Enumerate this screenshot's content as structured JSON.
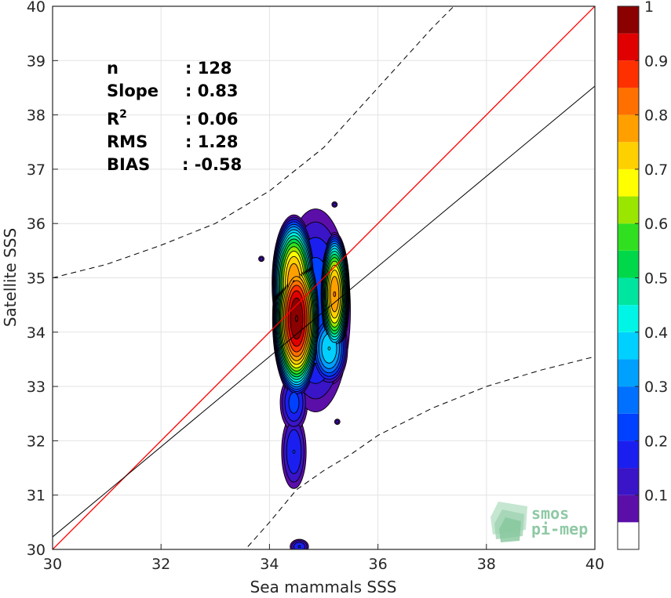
{
  "chart_data": {
    "type": "contour",
    "xlabel": "Sea mammals SSS",
    "ylabel": "Satellite SSS",
    "xlim": [
      30,
      40
    ],
    "ylim": [
      30,
      40
    ],
    "x_ticks": [
      "30",
      "32",
      "34",
      "36",
      "38",
      "40"
    ],
    "y_ticks": [
      "30",
      "31",
      "32",
      "33",
      "34",
      "35",
      "36",
      "37",
      "38",
      "39",
      "40"
    ],
    "grid": true,
    "stats": [
      {
        "label": "n",
        "value": ": 128"
      },
      {
        "label": "Slope",
        "value": ": 0.83"
      },
      {
        "label": "R",
        "label_sup": "2",
        "value": ": 0.06"
      },
      {
        "label": "RMS",
        "value": ": 1.28"
      },
      {
        "label": "BIAS",
        "value": ": -0.58"
      }
    ],
    "identity_line": {
      "x": [
        30,
        40
      ],
      "y": [
        30,
        40
      ],
      "color": "#ff0000"
    },
    "regression_line": {
      "x": [
        30,
        40
      ],
      "y": [
        30.23,
        38.53
      ],
      "color": "#000000"
    },
    "upper_confidence_curve": {
      "x": [
        30,
        31,
        32,
        33,
        34,
        35,
        36,
        37,
        37.4
      ],
      "y": [
        35.0,
        35.25,
        35.6,
        36.0,
        36.6,
        37.4,
        38.5,
        39.6,
        40.0
      ]
    },
    "lower_confidence_curve": {
      "x": [
        33.6,
        34,
        34.5,
        35,
        35.5,
        36,
        37,
        38,
        39,
        40
      ],
      "y": [
        30.05,
        30.5,
        31.1,
        31.45,
        31.75,
        32.1,
        32.6,
        33.0,
        33.3,
        33.55
      ]
    },
    "density_blobs": [
      {
        "cx": 34.5,
        "cy": 34.25,
        "rx": 0.35,
        "ry": 1.15,
        "peak": 1.0
      },
      {
        "cx": 35.2,
        "cy": 34.7,
        "rx": 0.22,
        "ry": 0.9,
        "peak": 0.8
      },
      {
        "cx": 34.45,
        "cy": 34.9,
        "rx": 0.32,
        "ry": 1.0,
        "peak": 0.8
      },
      {
        "cx": 34.85,
        "cy": 34.4,
        "rx": 0.55,
        "ry": 1.6,
        "peak": 0.25
      },
      {
        "cx": 35.1,
        "cy": 33.7,
        "rx": 0.28,
        "ry": 0.55,
        "peak": 0.4
      },
      {
        "cx": 34.8,
        "cy": 35.7,
        "rx": 0.45,
        "ry": 0.45,
        "peak": 0.12
      },
      {
        "cx": 34.45,
        "cy": 32.7,
        "rx": 0.22,
        "ry": 0.45,
        "peak": 0.22
      },
      {
        "cx": 34.45,
        "cy": 31.8,
        "rx": 0.2,
        "ry": 0.6,
        "peak": 0.2
      },
      {
        "cx": 34.55,
        "cy": 30.05,
        "rx": 0.15,
        "ry": 0.12,
        "peak": 0.2
      },
      {
        "cx": 35.2,
        "cy": 36.35,
        "rx": 0.05,
        "ry": 0.05,
        "peak": 0.12
      },
      {
        "cx": 33.85,
        "cy": 35.35,
        "rx": 0.05,
        "ry": 0.05,
        "peak": 0.12
      },
      {
        "cx": 35.25,
        "cy": 32.35,
        "rx": 0.05,
        "ry": 0.05,
        "peak": 0.12
      }
    ],
    "colorbar": {
      "ticks": [
        "0.1",
        "0.2",
        "0.3",
        "0.4",
        "0.5",
        "0.6",
        "0.7",
        "0.8",
        "0.9",
        "1"
      ],
      "range": [
        0,
        1
      ],
      "levels": [
        0.05,
        0.1,
        0.15,
        0.2,
        0.25,
        0.3,
        0.35,
        0.4,
        0.45,
        0.5,
        0.55,
        0.6,
        0.65,
        0.7,
        0.75,
        0.8,
        0.85,
        0.9,
        0.95,
        1.0
      ],
      "colors": [
        "#ffffff",
        "#5b0fa8",
        "#3a14c7",
        "#1a1ff0",
        "#0040ff",
        "#0070ff",
        "#00a0ff",
        "#00d0ff",
        "#00f5e6",
        "#00e6a0",
        "#00d84a",
        "#30e020",
        "#9ae600",
        "#ffff00",
        "#ffd000",
        "#ffa000",
        "#ff7000",
        "#ff3000",
        "#e00000",
        "#8b0000"
      ]
    }
  },
  "logo": {
    "line1": "smos",
    "line2": "pi-mep"
  }
}
